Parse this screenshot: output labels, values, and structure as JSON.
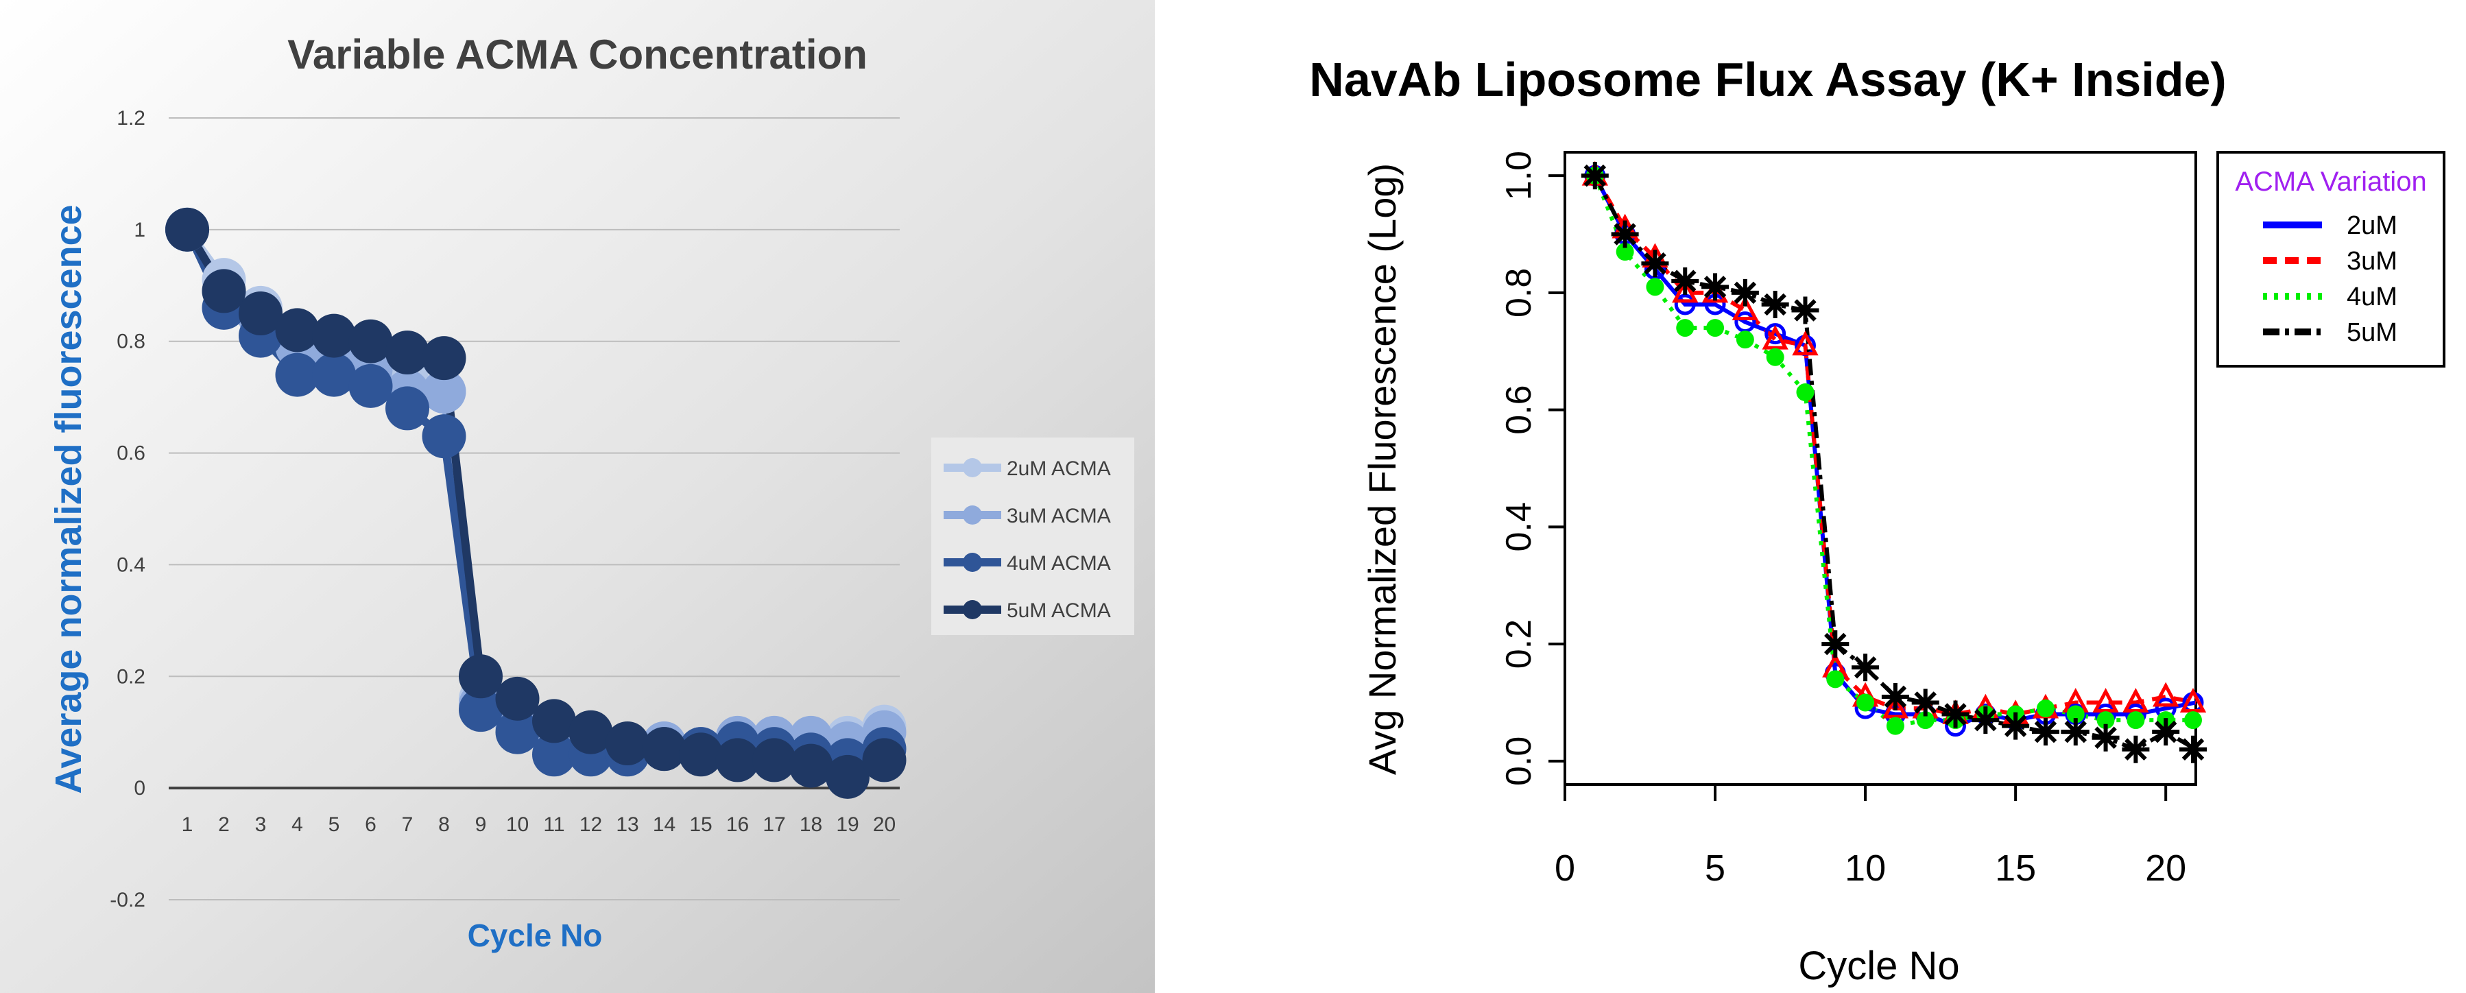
{
  "chart_data": [
    {
      "type": "line",
      "title": "Variable ACMA Concentration",
      "xlabel": "Cycle No",
      "ylabel": "Average normalized fluorescence",
      "ylim": [
        -0.2,
        1.2
      ],
      "y_ticks": [
        "1.2",
        "1",
        "0.8",
        "0.6",
        "0.4",
        "0.2",
        "0",
        "-0.2"
      ],
      "x": [
        1,
        2,
        3,
        4,
        5,
        6,
        7,
        8,
        9,
        10,
        11,
        12,
        13,
        14,
        15,
        16,
        17,
        18,
        19,
        20
      ],
      "x_ticks": [
        "1",
        "2",
        "3",
        "4",
        "5",
        "6",
        "7",
        "8",
        "9",
        "10",
        "11",
        "12",
        "13",
        "14",
        "15",
        "16",
        "17",
        "18",
        "19",
        "20"
      ],
      "grid": true,
      "error_bars": true,
      "legend_position": "right",
      "series": [
        {
          "name": "2uM ACMA",
          "color": "#b4c7e7",
          "values": [
            1.0,
            0.91,
            0.86,
            0.8,
            0.78,
            0.76,
            0.73,
            0.71,
            0.16,
            0.12,
            0.08,
            0.07,
            0.06,
            0.08,
            0.07,
            0.08,
            0.09,
            0.08,
            0.09,
            0.11
          ]
        },
        {
          "name": "3uM ACMA",
          "color": "#8faadc",
          "values": [
            1.0,
            0.89,
            0.84,
            0.79,
            0.77,
            0.75,
            0.71,
            0.71,
            0.15,
            0.11,
            0.09,
            0.08,
            0.07,
            0.08,
            0.07,
            0.09,
            0.09,
            0.09,
            0.08,
            0.1
          ]
        },
        {
          "name": "4uM ACMA",
          "color": "#2f5597",
          "values": [
            1.0,
            0.86,
            0.81,
            0.74,
            0.74,
            0.72,
            0.68,
            0.63,
            0.14,
            0.1,
            0.06,
            0.06,
            0.06,
            0.07,
            0.07,
            0.08,
            0.07,
            0.06,
            0.05,
            0.07
          ]
        },
        {
          "name": "5uM ACMA",
          "color": "#1f3864",
          "values": [
            1.0,
            0.89,
            0.85,
            0.82,
            0.81,
            0.8,
            0.78,
            0.77,
            0.2,
            0.16,
            0.12,
            0.1,
            0.08,
            0.07,
            0.06,
            0.05,
            0.05,
            0.04,
            0.02,
            0.05
          ]
        }
      ]
    },
    {
      "type": "line",
      "title": "NavAb Liposome Flux Assay (K+ Inside)",
      "xlabel": "Cycle No",
      "ylabel": "Avg Normalized Fluorescence (Log)",
      "xlim": [
        0,
        21
      ],
      "ylim": [
        -0.04,
        1.04
      ],
      "x_ticks": [
        "0",
        "5",
        "10",
        "15",
        "20"
      ],
      "y_ticks": [
        "0.0",
        "0.2",
        "0.4",
        "0.6",
        "0.8",
        "1.0"
      ],
      "legend_title": "ACMA Variation",
      "legend_title_color": "#a020f0",
      "legend_position": "top-right",
      "x": [
        1,
        2,
        3,
        4,
        5,
        6,
        7,
        8,
        9,
        10,
        11,
        12,
        13,
        14,
        15,
        16,
        17,
        18,
        19,
        20,
        21
      ],
      "series": [
        {
          "name": "2uM",
          "color": "#0000ff",
          "style": "solid",
          "marker": "circle",
          "values": [
            1.0,
            0.9,
            0.84,
            0.78,
            0.78,
            0.75,
            0.73,
            0.71,
            0.15,
            0.09,
            0.08,
            0.08,
            0.06,
            0.08,
            0.07,
            0.08,
            0.08,
            0.08,
            0.08,
            0.09,
            0.1
          ]
        },
        {
          "name": "3uM",
          "color": "#ff0000",
          "style": "dashed",
          "marker": "triangle",
          "values": [
            1.0,
            0.91,
            0.86,
            0.8,
            0.8,
            0.77,
            0.72,
            0.71,
            0.16,
            0.11,
            0.09,
            0.09,
            0.08,
            0.09,
            0.08,
            0.09,
            0.1,
            0.1,
            0.1,
            0.11,
            0.1
          ]
        },
        {
          "name": "4uM",
          "color": "#00ee00",
          "style": "dotted",
          "marker": "filled-circle",
          "values": [
            1.0,
            0.87,
            0.81,
            0.74,
            0.74,
            0.72,
            0.69,
            0.63,
            0.14,
            0.1,
            0.06,
            0.07,
            0.07,
            0.08,
            0.08,
            0.09,
            0.08,
            0.07,
            0.07,
            0.07,
            0.07
          ]
        },
        {
          "name": "5uM",
          "color": "#000000",
          "style": "dotdash",
          "marker": "asterisk",
          "values": [
            1.0,
            0.9,
            0.85,
            0.82,
            0.81,
            0.8,
            0.78,
            0.77,
            0.2,
            0.16,
            0.11,
            0.1,
            0.08,
            0.07,
            0.06,
            0.05,
            0.05,
            0.04,
            0.02,
            0.05,
            0.02
          ]
        }
      ]
    }
  ]
}
